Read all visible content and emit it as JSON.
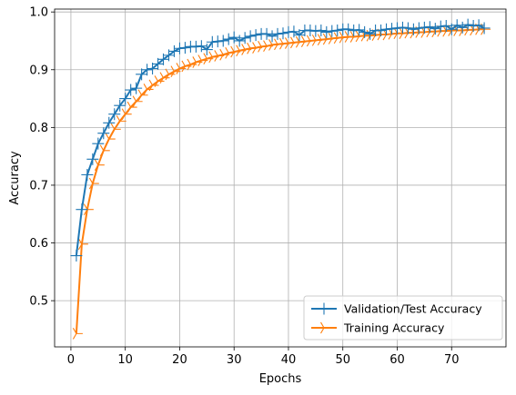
{
  "chart_data": {
    "type": "line",
    "xlabel": "Epochs",
    "ylabel": "Accuracy",
    "xlim": [
      -3,
      80
    ],
    "ylim": [
      0.42,
      1.005
    ],
    "xticks": [
      0,
      10,
      20,
      30,
      40,
      50,
      60,
      70
    ],
    "yticks": [
      0.5,
      0.6,
      0.7,
      0.8,
      0.9,
      1.0
    ],
    "ytick_labels": [
      "0.5",
      "0.6",
      "0.7",
      "0.8",
      "0.9",
      "1.0"
    ],
    "grid": true,
    "legend_position": "lower-right",
    "x": [
      1,
      2,
      3,
      4,
      5,
      6,
      7,
      8,
      9,
      10,
      11,
      12,
      13,
      14,
      15,
      16,
      17,
      18,
      19,
      20,
      21,
      22,
      23,
      24,
      25,
      26,
      27,
      28,
      29,
      30,
      31,
      32,
      33,
      34,
      35,
      36,
      37,
      38,
      39,
      40,
      41,
      42,
      43,
      44,
      45,
      46,
      47,
      48,
      49,
      50,
      51,
      52,
      53,
      54,
      55,
      56,
      57,
      58,
      59,
      60,
      61,
      62,
      63,
      64,
      65,
      66,
      67,
      68,
      69,
      70,
      71,
      72,
      73,
      74,
      75,
      76
    ],
    "series": [
      {
        "name": "Validation/Test Accuracy",
        "color": "#1f77b4",
        "marker": "plus",
        "values": [
          0.578,
          0.658,
          0.718,
          0.745,
          0.772,
          0.79,
          0.808,
          0.823,
          0.838,
          0.85,
          0.865,
          0.868,
          0.892,
          0.9,
          0.902,
          0.91,
          0.918,
          0.925,
          0.932,
          0.937,
          0.938,
          0.94,
          0.94,
          0.941,
          0.935,
          0.948,
          0.949,
          0.95,
          0.953,
          0.956,
          0.95,
          0.955,
          0.958,
          0.96,
          0.962,
          0.962,
          0.958,
          0.962,
          0.963,
          0.965,
          0.966,
          0.96,
          0.968,
          0.968,
          0.967,
          0.968,
          0.965,
          0.967,
          0.968,
          0.97,
          0.97,
          0.968,
          0.969,
          0.965,
          0.962,
          0.968,
          0.968,
          0.97,
          0.971,
          0.972,
          0.973,
          0.972,
          0.97,
          0.972,
          0.973,
          0.974,
          0.971,
          0.975,
          0.976,
          0.97,
          0.977,
          0.973,
          0.978,
          0.976,
          0.977,
          0.972
        ]
      },
      {
        "name": "Training Accuracy",
        "color": "#ff7f0e",
        "marker": "tri_right",
        "values": [
          0.443,
          0.598,
          0.658,
          0.703,
          0.735,
          0.76,
          0.78,
          0.797,
          0.811,
          0.823,
          0.835,
          0.845,
          0.856,
          0.866,
          0.873,
          0.88,
          0.886,
          0.892,
          0.897,
          0.902,
          0.906,
          0.909,
          0.913,
          0.916,
          0.919,
          0.922,
          0.924,
          0.926,
          0.929,
          0.931,
          0.933,
          0.935,
          0.937,
          0.938,
          0.94,
          0.941,
          0.943,
          0.944,
          0.945,
          0.946,
          0.947,
          0.948,
          0.949,
          0.95,
          0.951,
          0.952,
          0.953,
          0.954,
          0.955,
          0.956,
          0.957,
          0.957,
          0.958,
          0.959,
          0.959,
          0.96,
          0.961,
          0.961,
          0.962,
          0.963,
          0.963,
          0.964,
          0.964,
          0.965,
          0.965,
          0.966,
          0.966,
          0.967,
          0.967,
          0.968,
          0.968,
          0.968,
          0.969,
          0.969,
          0.97,
          0.97
        ]
      }
    ]
  }
}
